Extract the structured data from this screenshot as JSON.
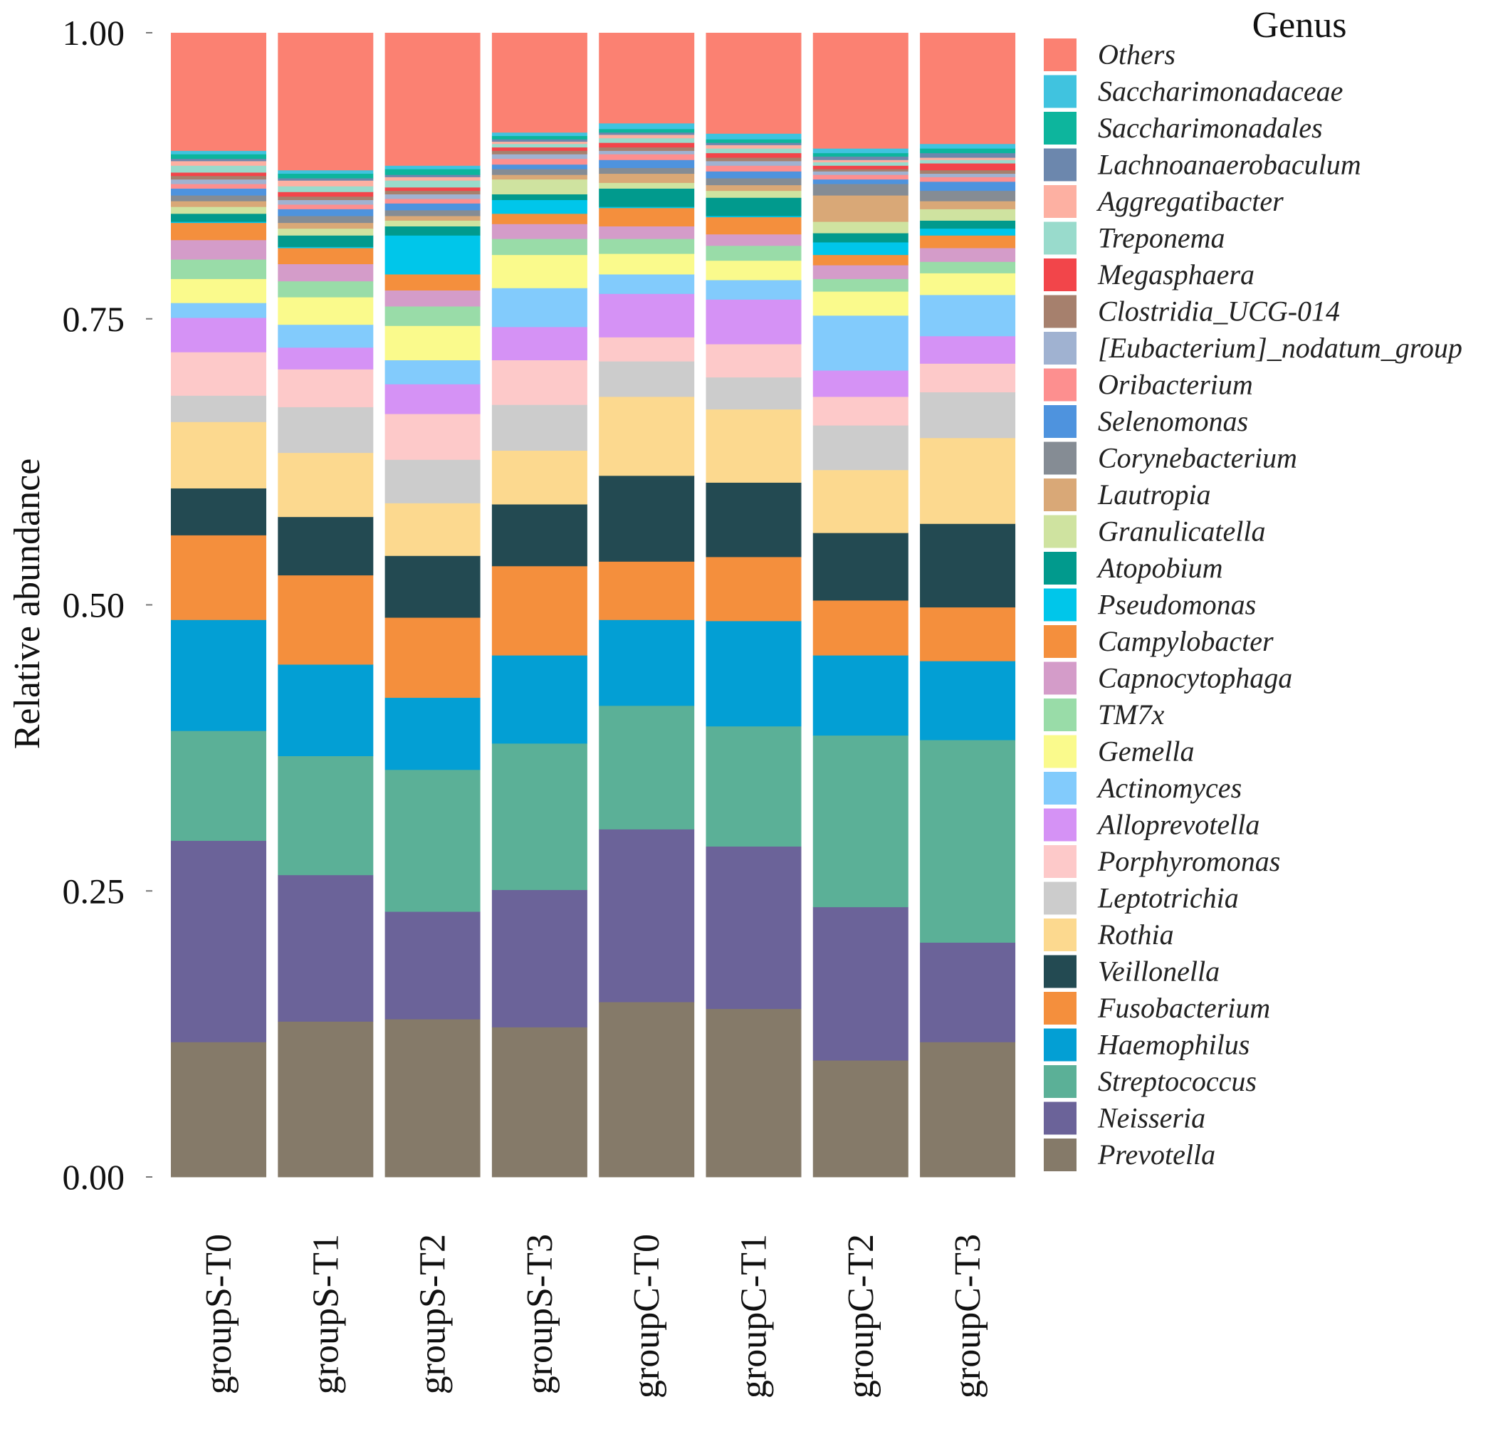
{
  "chart_data": {
    "type": "bar",
    "stacked": true,
    "title": "",
    "xlabel": "",
    "ylabel": "Relative abundance",
    "ylim": [
      0,
      1
    ],
    "yticks": [
      "0.00",
      "0.25",
      "0.50",
      "0.75",
      "1.00"
    ],
    "ytick_values": [
      0,
      0.25,
      0.5,
      0.75,
      1
    ],
    "legend_title": "Genus",
    "legend_position": "right",
    "categories": [
      "groupS-T0",
      "groupS-T1",
      "groupS-T2",
      "groupS-T3",
      "groupC-T0",
      "groupC-T1",
      "groupC-T2",
      "groupC-T3"
    ],
    "series": [
      {
        "name": "Prevotella",
        "color": "#857a69",
        "values": [
          0.118,
          0.136,
          0.138,
          0.131,
          0.153,
          0.147,
          0.102,
          0.118
        ]
      },
      {
        "name": "Neisseria",
        "color": "#6b6399",
        "values": [
          0.176,
          0.128,
          0.094,
          0.12,
          0.151,
          0.142,
          0.134,
          0.087
        ]
      },
      {
        "name": "Streptococcus",
        "color": "#5bb097",
        "values": [
          0.096,
          0.104,
          0.124,
          0.128,
          0.108,
          0.105,
          0.15,
          0.177
        ]
      },
      {
        "name": "Haemophilus",
        "color": "#039fd4",
        "values": [
          0.097,
          0.08,
          0.063,
          0.077,
          0.075,
          0.092,
          0.07,
          0.069
        ]
      },
      {
        "name": "Fusobacterium",
        "color": "#f48f3d",
        "values": [
          0.074,
          0.078,
          0.07,
          0.078,
          0.051,
          0.056,
          0.048,
          0.047
        ]
      },
      {
        "name": "Veillonella",
        "color": "#234a52",
        "values": [
          0.041,
          0.051,
          0.054,
          0.054,
          0.075,
          0.065,
          0.059,
          0.073
        ]
      },
      {
        "name": "Rothia",
        "color": "#fcd98f",
        "values": [
          0.058,
          0.056,
          0.046,
          0.047,
          0.069,
          0.064,
          0.055,
          0.075
        ]
      },
      {
        "name": "Leptotrichia",
        "color": "#cccccc",
        "values": [
          0.023,
          0.04,
          0.038,
          0.04,
          0.031,
          0.028,
          0.039,
          0.04
        ]
      },
      {
        "name": "Porphyromonas",
        "color": "#fdc9c9",
        "values": [
          0.038,
          0.033,
          0.04,
          0.039,
          0.021,
          0.029,
          0.025,
          0.025
        ]
      },
      {
        "name": "Alloprevotella",
        "color": "#d592f5",
        "values": [
          0.03,
          0.019,
          0.026,
          0.029,
          0.038,
          0.039,
          0.023,
          0.024
        ]
      },
      {
        "name": "Actinomyces",
        "color": "#82cbfc",
        "values": [
          0.013,
          0.02,
          0.021,
          0.034,
          0.017,
          0.017,
          0.048,
          0.036
        ]
      },
      {
        "name": "Gemella",
        "color": "#fafa8c",
        "values": [
          0.021,
          0.024,
          0.03,
          0.029,
          0.018,
          0.017,
          0.021,
          0.019
        ]
      },
      {
        "name": "TM7x",
        "color": "#99dca8",
        "values": [
          0.017,
          0.014,
          0.017,
          0.014,
          0.013,
          0.013,
          0.011,
          0.01
        ]
      },
      {
        "name": "Capnocytophaga",
        "color": "#d49cc9",
        "values": [
          0.017,
          0.015,
          0.014,
          0.013,
          0.011,
          0.01,
          0.012,
          0.012
        ]
      },
      {
        "name": "Campylobacter",
        "color": "#f48f3d",
        "values": [
          0.015,
          0.014,
          0.014,
          0.009,
          0.016,
          0.015,
          0.009,
          0.011
        ]
      },
      {
        "name": "Pseudomonas",
        "color": "#00c6ea",
        "values": [
          0.001,
          0.001,
          0.034,
          0.012,
          0.001,
          0.001,
          0.011,
          0.006
        ]
      },
      {
        "name": "Atopobium",
        "color": "#019a8d",
        "values": [
          0.007,
          0.01,
          0.008,
          0.005,
          0.016,
          0.016,
          0.008,
          0.007
        ]
      },
      {
        "name": "Granulicatella",
        "color": "#cfe3a0",
        "values": [
          0.006,
          0.006,
          0.005,
          0.013,
          0.005,
          0.006,
          0.01,
          0.01
        ]
      },
      {
        "name": "Lautropia",
        "color": "#d9a877",
        "values": [
          0.005,
          0.005,
          0.004,
          0.004,
          0.008,
          0.005,
          0.023,
          0.007
        ]
      },
      {
        "name": "Corynebacterium",
        "color": "#858c94",
        "values": [
          0.005,
          0.006,
          0.005,
          0.005,
          0.005,
          0.006,
          0.01,
          0.009
        ]
      },
      {
        "name": "Selenomonas",
        "color": "#4e93de",
        "values": [
          0.006,
          0.006,
          0.006,
          0.004,
          0.007,
          0.006,
          0.004,
          0.008
        ]
      },
      {
        "name": "Oribacterium",
        "color": "#fd8f8f",
        "values": [
          0.004,
          0.004,
          0.004,
          0.005,
          0.005,
          0.005,
          0.004,
          0.004
        ]
      },
      {
        "name": "[Eubacterium]_nodatum_group",
        "color": "#a0b2d1",
        "values": [
          0.004,
          0.004,
          0.004,
          0.004,
          0.003,
          0.004,
          0.003,
          0.003
        ]
      },
      {
        "name": "Clostridia_UCG-014",
        "color": "#a6806d",
        "values": [
          0.003,
          0.003,
          0.003,
          0.003,
          0.003,
          0.003,
          0.002,
          0.003
        ]
      },
      {
        "name": "Megasphaera",
        "color": "#f2454a",
        "values": [
          0.003,
          0.004,
          0.003,
          0.003,
          0.004,
          0.004,
          0.003,
          0.006
        ]
      },
      {
        "name": "Treponema",
        "color": "#99dbcc",
        "values": [
          0.006,
          0.005,
          0.006,
          0.003,
          0.004,
          0.004,
          0.003,
          0.003
        ]
      },
      {
        "name": "Aggregatibacter",
        "color": "#fdb0a2",
        "values": [
          0.004,
          0.005,
          0.003,
          0.002,
          0.003,
          0.003,
          0.002,
          0.002
        ]
      },
      {
        "name": "Lachnoanaerobaculum",
        "color": "#6c87ad",
        "values": [
          0.002,
          0.002,
          0.002,
          0.002,
          0.002,
          0.002,
          0.003,
          0.004
        ]
      },
      {
        "name": "Saccharimonadales",
        "color": "#0db59d",
        "values": [
          0.004,
          0.004,
          0.005,
          0.003,
          0.003,
          0.003,
          0.003,
          0.004
        ]
      },
      {
        "name": "Saccharimonadaceae",
        "color": "#40c3df",
        "values": [
          0.003,
          0.003,
          0.003,
          0.003,
          0.005,
          0.005,
          0.004,
          0.004
        ]
      },
      {
        "name": "Others",
        "color": "#fb8172",
        "values": [
          0.072,
          0.085,
          0.083,
          0.07,
          0.064,
          0.065,
          0.07,
          0.076
        ]
      }
    ]
  }
}
